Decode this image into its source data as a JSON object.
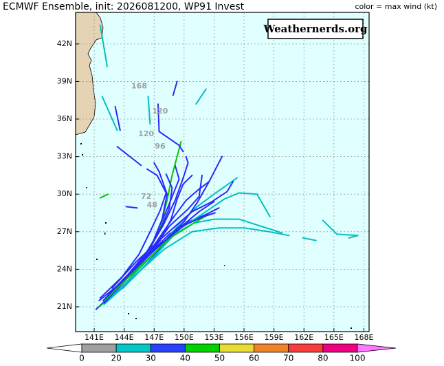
{
  "header": {
    "title": "ECMWF Ensemble, init: 2026081200, WP91 Invest",
    "color_note": "color = max wind (kt)"
  },
  "watermark": "Weathernerds.org",
  "map": {
    "lonlim": [
      139.14,
      168.52
    ],
    "latlim": [
      19.02,
      44.52
    ],
    "lon_ticks": [
      {
        "value": 141,
        "label": "141E"
      },
      {
        "value": 144,
        "label": "144E"
      },
      {
        "value": 147,
        "label": "147E"
      },
      {
        "value": 150,
        "label": "150E"
      },
      {
        "value": 153,
        "label": "153E"
      },
      {
        "value": 156,
        "label": "156E"
      },
      {
        "value": 159,
        "label": "159E"
      },
      {
        "value": 162,
        "label": "162E"
      },
      {
        "value": 165,
        "label": "165E"
      },
      {
        "value": 168,
        "label": "168E"
      }
    ],
    "lat_ticks": [
      {
        "value": 21,
        "label": "21N"
      },
      {
        "value": 24,
        "label": "24N"
      },
      {
        "value": 27,
        "label": "27N"
      },
      {
        "value": 30,
        "label": "30N"
      },
      {
        "value": 33,
        "label": "33N"
      },
      {
        "value": 36,
        "label": "36N"
      },
      {
        "value": 39,
        "label": "39N"
      },
      {
        "value": 42,
        "label": "42N"
      }
    ],
    "tracks": [
      {
        "color": "#2828ff",
        "lon": [
          141.2,
          143.3,
          145.3,
          147.1,
          148.4,
          149.5,
          149.1
        ],
        "lat": [
          20.8,
          22.4,
          24.1,
          26.5,
          29.0,
          31.2,
          32.3
        ]
      },
      {
        "color": "#2828ff",
        "lon": [
          141.5,
          143.5,
          145.8,
          147.5,
          148.8,
          150.2,
          151.5,
          152.5
        ],
        "lat": [
          21.5,
          22.8,
          24.5,
          26.5,
          28.0,
          29.5,
          30.4,
          31.0
        ]
      },
      {
        "color": "#2828ff",
        "lon": [
          142,
          144,
          146,
          147.8,
          149,
          150.5,
          152,
          153.5
        ],
        "lat": [
          21.3,
          22.6,
          24.2,
          25.8,
          27.0,
          27.8,
          28.3,
          28.9
        ]
      },
      {
        "color": "#00c0c0",
        "lon": [
          142,
          144.5,
          147,
          149,
          151,
          153,
          155.5,
          159.8
        ],
        "lat": [
          21.5,
          23,
          25,
          26.8,
          27.7,
          28.0,
          28.0,
          26.9
        ]
      },
      {
        "color": "#00c800",
        "lon": [
          141.5,
          143.8,
          145.8,
          147.5,
          148.3,
          148.8,
          149.7
        ],
        "lat": [
          21.0,
          22.5,
          24.5,
          27.0,
          29.5,
          31.5,
          34.2
        ]
      },
      {
        "color": "#2828ff",
        "lon": [
          142.3,
          144.3,
          146.4,
          147.9,
          149.1,
          150.0,
          150.4,
          150.2
        ],
        "lat": [
          21.8,
          23.5,
          25.5,
          27.5,
          29.5,
          31.5,
          32.5,
          33.0
        ]
      },
      {
        "color": "#2828ff",
        "lon": [
          142.5,
          145,
          146.8,
          147.8,
          148.3,
          147.5,
          147.0
        ],
        "lat": [
          22,
          24,
          26,
          28,
          30,
          31.8,
          32.5
        ]
      },
      {
        "color": "#2828ff",
        "lon": [
          143,
          145,
          147,
          148.5,
          150,
          151.5,
          153
        ],
        "lat": [
          22.2,
          24.0,
          25.6,
          26.8,
          27.6,
          28.6,
          29.4
        ]
      },
      {
        "color": "#00c0c0",
        "lon": [
          142,
          144.5,
          147,
          149.5,
          152,
          154,
          155.5,
          157.3,
          158.6
        ],
        "lat": [
          21.2,
          23,
          25,
          27.2,
          28.5,
          29.6,
          30.1,
          30.0,
          28.2
        ]
      },
      {
        "color": "#2828ff",
        "lon": [
          143.5,
          145.3,
          147.0,
          148.6,
          150.4,
          151.5,
          151.8
        ],
        "lat": [
          22.8,
          24.3,
          25.8,
          27.5,
          28.8,
          29.8,
          31.5
        ]
      },
      {
        "color": "#2828ff",
        "lon": [
          141.6,
          143.8,
          145.5,
          146.6,
          147.6,
          148.2,
          147.3,
          146.3
        ],
        "lat": [
          21.7,
          23.4,
          25.2,
          27.0,
          28.7,
          30.1,
          31.5,
          32.0
        ]
      },
      {
        "color": "#00c0c0",
        "lon": [
          142.5,
          145,
          147.3,
          149.5,
          151.3,
          153,
          155.3
        ],
        "lat": [
          21.6,
          23.6,
          25.5,
          27.6,
          29.0,
          30.0,
          31.3
        ]
      },
      {
        "color": "#2828ff",
        "lon": [
          142.8,
          145.2,
          147.5,
          149.2,
          150.8,
          152.8,
          154.3,
          154.9
        ],
        "lat": [
          22.5,
          24.6,
          26.3,
          27.5,
          28.6,
          29.4,
          30.2,
          31.0
        ]
      },
      {
        "color": "#2828ff",
        "lon": [
          144,
          146,
          148,
          150,
          151.3,
          152.5,
          153.8
        ],
        "lat": [
          23.2,
          24.8,
          26.2,
          27.8,
          29.3,
          31.0,
          33.0
        ]
      },
      {
        "color": "#2828ff",
        "lon": [
          142,
          144,
          146,
          147.5,
          148.5,
          148.8,
          148.2
        ],
        "lat": [
          21.3,
          23,
          25,
          27,
          28.8,
          30.5,
          31.6
        ]
      },
      {
        "color": "#00c0c0",
        "lon": [
          143,
          145.5,
          148,
          150.8,
          153.5,
          156,
          158.5,
          160.5
        ],
        "lat": [
          22,
          23.8,
          25.6,
          27.0,
          27.3,
          27.3,
          27.0,
          26.7
        ]
      },
      {
        "color": "#00c800",
        "lon": [
          142.2,
          144.6,
          146.6,
          148.6,
          150.8,
          152.5
        ],
        "lat": [
          21.6,
          23.5,
          25.0,
          26.5,
          27.6,
          28.4
        ]
      },
      {
        "color": "#2828ff",
        "lon": [
          141.9,
          143.9,
          146.1,
          147.6,
          148.7,
          149.3,
          149.9,
          150.8
        ],
        "lat": [
          21.5,
          23.2,
          24.8,
          26.3,
          28.0,
          29.6,
          30.8,
          31.5
        ]
      },
      {
        "color": "#2828ff",
        "lon": [
          143.4,
          145.7,
          147.8,
          150,
          151.9,
          153.1
        ],
        "lat": [
          22.7,
          24.5,
          26.1,
          27.5,
          28.2,
          28.5
        ]
      },
      {
        "color": "#2828ff",
        "lon": [
          149.3,
          148.9
        ],
        "lat": [
          39.0,
          37.9
        ]
      },
      {
        "color": "#2828ff",
        "lon": [
          147.4,
          147.5,
          149.5,
          149.9
        ],
        "lat": [
          37.2,
          35.0,
          33.9,
          33.4
        ]
      },
      {
        "color": "#2828ff",
        "lon": [
          143.3,
          145.7
        ],
        "lat": [
          33.8,
          32.3
        ]
      },
      {
        "color": "#2828ff",
        "lon": [
          143.1,
          143.6
        ],
        "lat": [
          37.0,
          35.1
        ]
      },
      {
        "color": "#00c0c0",
        "lon": [
          152.2,
          151.2
        ],
        "lat": [
          38.4,
          37.2
        ]
      },
      {
        "color": "#00c0c0",
        "lon": [
          146.4,
          146.6
        ],
        "lat": [
          37.8,
          35.6
        ]
      },
      {
        "color": "#00c0c0",
        "lon": [
          141.6,
          142.3
        ],
        "lat": [
          43.5,
          40.2
        ]
      },
      {
        "color": "#00c0c0",
        "lon": [
          141.8,
          143.3
        ],
        "lat": [
          37.8,
          35.1
        ]
      },
      {
        "color": "#00c800",
        "lon": [
          141.6,
          142.4
        ],
        "lat": [
          29.7,
          30.0
        ]
      },
      {
        "color": "#2828ff",
        "lon": [
          144.2,
          145.3
        ],
        "lat": [
          29.0,
          28.9
        ]
      },
      {
        "color": "#00c0c0",
        "lon": [
          161.9,
          163.2
        ],
        "lat": [
          26.5,
          26.3
        ]
      },
      {
        "color": "#00c0c0",
        "lon": [
          163.9,
          165.3,
          167.4,
          166.5
        ],
        "lat": [
          27.9,
          26.8,
          26.7,
          26.5
        ]
      }
    ],
    "hour_labels": [
      {
        "text": "168",
        "lon": 145.5,
        "lat": 38.6
      },
      {
        "text": "120",
        "lon": 147.6,
        "lat": 36.6
      },
      {
        "text": "120",
        "lon": 146.2,
        "lat": 34.8
      },
      {
        "text": "96",
        "lon": 147.6,
        "lat": 33.8
      },
      {
        "text": "72",
        "lon": 146.2,
        "lat": 29.8
      },
      {
        "text": "48",
        "lon": 146.8,
        "lat": 29.1
      }
    ]
  },
  "colorbar": {
    "levels": [
      0,
      20,
      30,
      40,
      50,
      60,
      70,
      80,
      100
    ],
    "colors": [
      "#ffffff",
      "#a0a0a0",
      "#00c8c8",
      "#2840ff",
      "#00d200",
      "#e6dc32",
      "#f08228",
      "#fa3c3c",
      "#f00082",
      "#ff78ff"
    ]
  }
}
